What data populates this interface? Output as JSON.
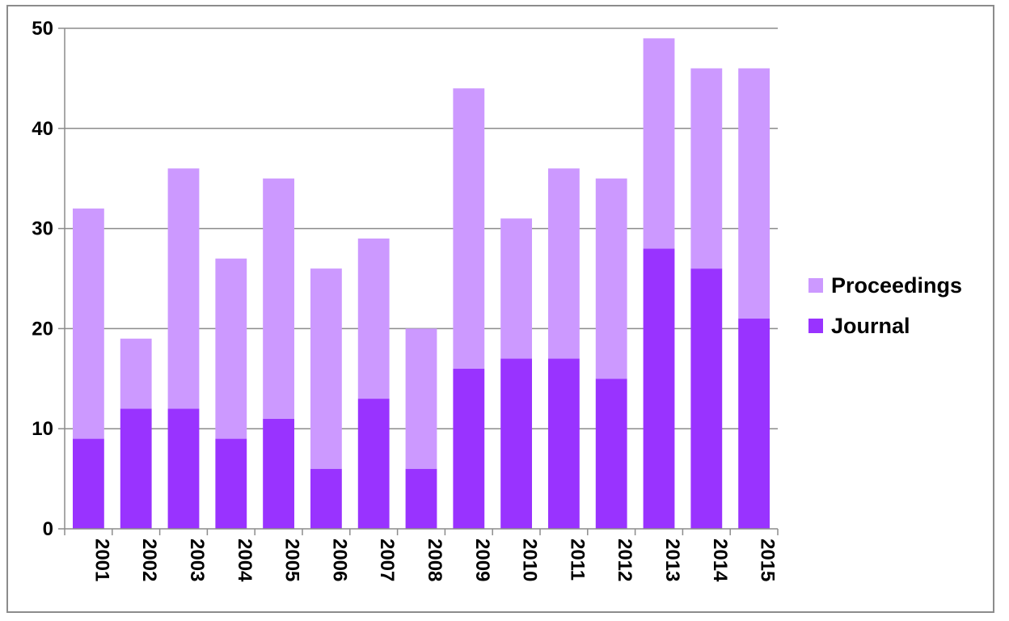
{
  "chart_data": {
    "type": "bar",
    "stacked": true,
    "title": "",
    "xlabel": "",
    "ylabel": "",
    "categories": [
      "2001",
      "2002",
      "2003",
      "2004",
      "2005",
      "2006",
      "2007",
      "2008",
      "2009",
      "2010",
      "2011",
      "2012",
      "2013",
      "2014",
      "2015"
    ],
    "series": [
      {
        "name": "Journal",
        "color": "#9933ff",
        "values": [
          9,
          12,
          12,
          9,
          11,
          6,
          13,
          6,
          16,
          17,
          17,
          15,
          28,
          26,
          21
        ]
      },
      {
        "name": "Proceedings",
        "color": "#cc99ff",
        "values": [
          23,
          7,
          24,
          18,
          24,
          20,
          16,
          14,
          28,
          14,
          19,
          20,
          21,
          20,
          25
        ]
      }
    ],
    "ylim": [
      0,
      50
    ],
    "yticks": [
      0,
      10,
      20,
      30,
      40,
      50
    ],
    "grid": true,
    "legend_position": "right",
    "legend_order": [
      "Proceedings",
      "Journal"
    ]
  }
}
